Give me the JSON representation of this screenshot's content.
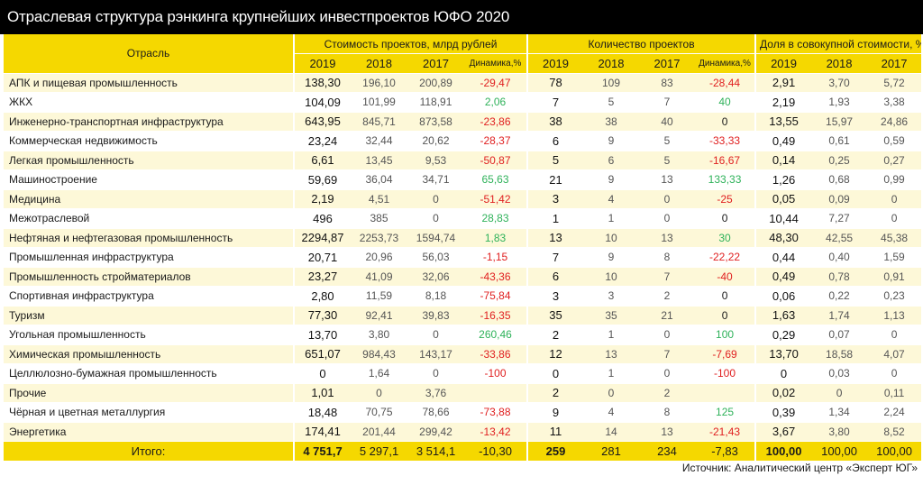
{
  "title": "Отраслевая структура рэнкинга крупнейших инвестпроектов ЮФО 2020",
  "headers": {
    "sector": "Отрасль",
    "cost_group": "Стоимость проектов, млрд рублей",
    "count_group": "Количество проектов",
    "share_group": "Доля в совокупной стоимости, %",
    "y2019": "2019",
    "y2018": "2018",
    "y2017": "2017",
    "dynamics": "Динамика,%"
  },
  "rows": [
    {
      "name": "АПК и пищевая промышленность",
      "c19": "138,30",
      "c18": "196,10",
      "c17": "200,89",
      "cd": "-29,47",
      "n19": "78",
      "n18": "109",
      "n17": "83",
      "nd": "-28,44",
      "s19": "2,91",
      "s18": "3,70",
      "s17": "5,72"
    },
    {
      "name": "ЖКХ",
      "c19": "104,09",
      "c18": "101,99",
      "c17": "118,91",
      "cd": "2,06",
      "n19": "7",
      "n18": "5",
      "n17": "7",
      "nd": "40",
      "s19": "2,19",
      "s18": "1,93",
      "s17": "3,38"
    },
    {
      "name": "Инженерно-транспортная инфраструктура",
      "c19": "643,95",
      "c18": "845,71",
      "c17": "873,58",
      "cd": "-23,86",
      "n19": "38",
      "n18": "38",
      "n17": "40",
      "nd": "0",
      "s19": "13,55",
      "s18": "15,97",
      "s17": "24,86"
    },
    {
      "name": "Коммерческая недвижимость",
      "c19": "23,24",
      "c18": "32,44",
      "c17": "20,62",
      "cd": "-28,37",
      "n19": "6",
      "n18": "9",
      "n17": "5",
      "nd": "-33,33",
      "s19": "0,49",
      "s18": "0,61",
      "s17": "0,59"
    },
    {
      "name": "Легкая промышленность",
      "c19": "6,61",
      "c18": "13,45",
      "c17": "9,53",
      "cd": "-50,87",
      "n19": "5",
      "n18": "6",
      "n17": "5",
      "nd": "-16,67",
      "s19": "0,14",
      "s18": "0,25",
      "s17": "0,27"
    },
    {
      "name": "Машиностроение",
      "c19": "59,69",
      "c18": "36,04",
      "c17": "34,71",
      "cd": "65,63",
      "n19": "21",
      "n18": "9",
      "n17": "13",
      "nd": "133,33",
      "s19": "1,26",
      "s18": "0,68",
      "s17": "0,99"
    },
    {
      "name": "Медицина",
      "c19": "2,19",
      "c18": "4,51",
      "c17": "0",
      "cd": "-51,42",
      "n19": "3",
      "n18": "4",
      "n17": "0",
      "nd": "-25",
      "s19": "0,05",
      "s18": "0,09",
      "s17": "0"
    },
    {
      "name": "Межотраслевой",
      "c19": "496",
      "c18": "385",
      "c17": "0",
      "cd": "28,83",
      "n19": "1",
      "n18": "1",
      "n17": "0",
      "nd": "0",
      "s19": "10,44",
      "s18": "7,27",
      "s17": "0"
    },
    {
      "name": "Нефтяная и нефтегазовая промышленность",
      "c19": "2294,87",
      "c18": "2253,73",
      "c17": "1594,74",
      "cd": "1,83",
      "n19": "13",
      "n18": "10",
      "n17": "13",
      "nd": "30",
      "s19": "48,30",
      "s18": "42,55",
      "s17": "45,38"
    },
    {
      "name": "Промышленная инфраструктура",
      "c19": "20,71",
      "c18": "20,96",
      "c17": "56,03",
      "cd": "-1,15",
      "n19": "7",
      "n18": "9",
      "n17": "8",
      "nd": "-22,22",
      "s19": "0,44",
      "s18": "0,40",
      "s17": "1,59"
    },
    {
      "name": "Промышленность стройматериалов",
      "c19": "23,27",
      "c18": "41,09",
      "c17": "32,06",
      "cd": "-43,36",
      "n19": "6",
      "n18": "10",
      "n17": "7",
      "nd": "-40",
      "s19": "0,49",
      "s18": "0,78",
      "s17": "0,91"
    },
    {
      "name": "Спортивная инфраструктура",
      "c19": "2,80",
      "c18": "11,59",
      "c17": "8,18",
      "cd": "-75,84",
      "n19": "3",
      "n18": "3",
      "n17": "2",
      "nd": "0",
      "s19": "0,06",
      "s18": "0,22",
      "s17": "0,23"
    },
    {
      "name": "Туризм",
      "c19": "77,30",
      "c18": "92,41",
      "c17": "39,83",
      "cd": "-16,35",
      "n19": "35",
      "n18": "35",
      "n17": "21",
      "nd": "0",
      "s19": "1,63",
      "s18": "1,74",
      "s17": "1,13"
    },
    {
      "name": "Угольная промышленность",
      "c19": "13,70",
      "c18": "3,80",
      "c17": "0",
      "cd": "260,46",
      "n19": "2",
      "n18": "1",
      "n17": "0",
      "nd": "100",
      "s19": "0,29",
      "s18": "0,07",
      "s17": "0"
    },
    {
      "name": "Химическая промышленность",
      "c19": "651,07",
      "c18": "984,43",
      "c17": "143,17",
      "cd": "-33,86",
      "n19": "12",
      "n18": "13",
      "n17": "7",
      "nd": "-7,69",
      "s19": "13,70",
      "s18": "18,58",
      "s17": "4,07"
    },
    {
      "name": "Целлюлозно-бумажная промышленность",
      "c19": "0",
      "c18": "1,64",
      "c17": "0",
      "cd": "-100",
      "n19": "0",
      "n18": "1",
      "n17": "0",
      "nd": "-100",
      "s19": "0",
      "s18": "0,03",
      "s17": "0"
    },
    {
      "name": "Прочие",
      "c19": "1,01",
      "c18": "0",
      "c17": "3,76",
      "cd": "",
      "n19": "2",
      "n18": "0",
      "n17": "2",
      "nd": "",
      "s19": "0,02",
      "s18": "0",
      "s17": "0,11"
    },
    {
      "name": "Чёрная и цветная металлургия",
      "c19": "18,48",
      "c18": "70,75",
      "c17": "78,66",
      "cd": "-73,88",
      "n19": "9",
      "n18": "4",
      "n17": "8",
      "nd": "125",
      "s19": "0,39",
      "s18": "1,34",
      "s17": "2,24"
    },
    {
      "name": "Энергетика",
      "c19": "174,41",
      "c18": "201,44",
      "c17": "299,42",
      "cd": "-13,42",
      "n19": "11",
      "n18": "14",
      "n17": "13",
      "nd": "-21,43",
      "s19": "3,67",
      "s18": "3,80",
      "s17": "8,52"
    }
  ],
  "total": {
    "name": "Итого:",
    "c19": "4 751,7",
    "c18": "5 297,1",
    "c17": "3 514,1",
    "cd": "-10,30",
    "n19": "259",
    "n18": "281",
    "n17": "234",
    "nd": "-7,83",
    "s19": "100,00",
    "s18": "100,00",
    "s17": "100,00"
  },
  "source": "Источник: Аналитический центр «Эксперт ЮГ»",
  "colors": {
    "header": "#f5d800",
    "stripe": "#fdf8d8",
    "negative": "#e02020",
    "positive": "#2fb25a",
    "title_bg": "#000000"
  }
}
